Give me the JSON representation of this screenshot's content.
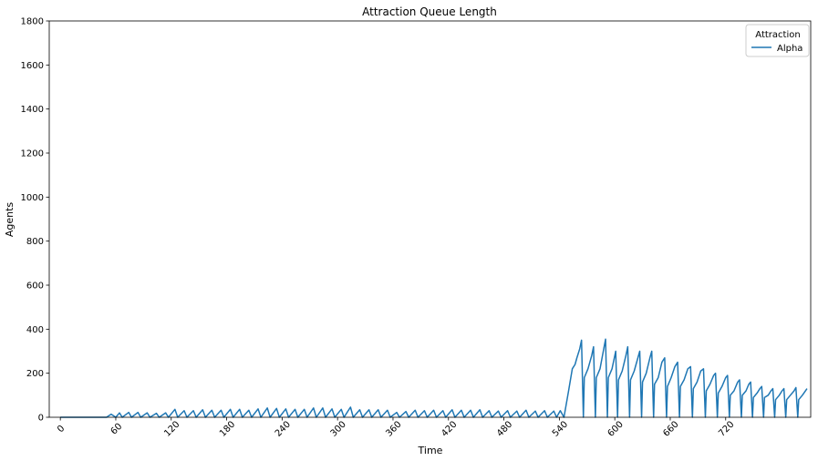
{
  "chart_data": {
    "type": "line",
    "title": "Attraction Queue Length",
    "xlabel": "Time",
    "ylabel": "Agents",
    "xlim": [
      -12,
      812
    ],
    "ylim": [
      0,
      1800
    ],
    "xticks": [
      0,
      60,
      120,
      180,
      240,
      300,
      360,
      420,
      480,
      540,
      600,
      660,
      720
    ],
    "yticks": [
      0,
      200,
      400,
      600,
      800,
      1000,
      1200,
      1400,
      1600,
      1800
    ],
    "legend": {
      "title": "Attraction",
      "position": "top-right"
    },
    "series": [
      {
        "name": "Alpha",
        "color": "#1f77b4",
        "points": [
          [
            0,
            0
          ],
          [
            10,
            0
          ],
          [
            20,
            0
          ],
          [
            30,
            0
          ],
          [
            40,
            0
          ],
          [
            50,
            0
          ],
          [
            55,
            14
          ],
          [
            60,
            0
          ],
          [
            64,
            20
          ],
          [
            67,
            0
          ],
          [
            74,
            22
          ],
          [
            77,
            0
          ],
          [
            84,
            22
          ],
          [
            87,
            0
          ],
          [
            94,
            20
          ],
          [
            97,
            0
          ],
          [
            104,
            18
          ],
          [
            107,
            0
          ],
          [
            114,
            20
          ],
          [
            117,
            0
          ],
          [
            124,
            36
          ],
          [
            127,
            0
          ],
          [
            134,
            30
          ],
          [
            137,
            0
          ],
          [
            144,
            30
          ],
          [
            147,
            0
          ],
          [
            154,
            34
          ],
          [
            157,
            0
          ],
          [
            164,
            32
          ],
          [
            167,
            0
          ],
          [
            174,
            32
          ],
          [
            177,
            0
          ],
          [
            184,
            36
          ],
          [
            187,
            0
          ],
          [
            194,
            36
          ],
          [
            197,
            0
          ],
          [
            204,
            32
          ],
          [
            207,
            0
          ],
          [
            214,
            38
          ],
          [
            217,
            0
          ],
          [
            224,
            42
          ],
          [
            227,
            0
          ],
          [
            234,
            40
          ],
          [
            237,
            0
          ],
          [
            244,
            38
          ],
          [
            247,
            0
          ],
          [
            254,
            36
          ],
          [
            257,
            0
          ],
          [
            264,
            36
          ],
          [
            267,
            0
          ],
          [
            274,
            42
          ],
          [
            277,
            0
          ],
          [
            284,
            42
          ],
          [
            287,
            0
          ],
          [
            294,
            38
          ],
          [
            297,
            0
          ],
          [
            304,
            36
          ],
          [
            307,
            0
          ],
          [
            314,
            46
          ],
          [
            317,
            0
          ],
          [
            324,
            34
          ],
          [
            327,
            0
          ],
          [
            334,
            34
          ],
          [
            337,
            0
          ],
          [
            344,
            34
          ],
          [
            347,
            0
          ],
          [
            354,
            32
          ],
          [
            357,
            0
          ],
          [
            364,
            22
          ],
          [
            367,
            0
          ],
          [
            374,
            26
          ],
          [
            377,
            0
          ],
          [
            384,
            32
          ],
          [
            387,
            0
          ],
          [
            394,
            30
          ],
          [
            397,
            0
          ],
          [
            404,
            32
          ],
          [
            407,
            0
          ],
          [
            414,
            30
          ],
          [
            417,
            0
          ],
          [
            424,
            34
          ],
          [
            427,
            0
          ],
          [
            434,
            32
          ],
          [
            437,
            0
          ],
          [
            444,
            32
          ],
          [
            447,
            0
          ],
          [
            454,
            34
          ],
          [
            457,
            0
          ],
          [
            464,
            30
          ],
          [
            467,
            0
          ],
          [
            474,
            28
          ],
          [
            477,
            0
          ],
          [
            484,
            30
          ],
          [
            487,
            0
          ],
          [
            494,
            28
          ],
          [
            497,
            0
          ],
          [
            504,
            32
          ],
          [
            507,
            0
          ],
          [
            514,
            28
          ],
          [
            517,
            0
          ],
          [
            524,
            30
          ],
          [
            527,
            0
          ],
          [
            534,
            28
          ],
          [
            537,
            0
          ],
          [
            541,
            30
          ],
          [
            545,
            0
          ],
          [
            550,
            120
          ],
          [
            552,
            170
          ],
          [
            554,
            220
          ],
          [
            557,
            240
          ],
          [
            559,
            270
          ],
          [
            562,
            310
          ],
          [
            564,
            350
          ],
          [
            566,
            0
          ],
          [
            567,
            180
          ],
          [
            571,
            220
          ],
          [
            575,
            280
          ],
          [
            577,
            320
          ],
          [
            579,
            0
          ],
          [
            580,
            180
          ],
          [
            584,
            220
          ],
          [
            588,
            310
          ],
          [
            590,
            355
          ],
          [
            592,
            0
          ],
          [
            593,
            180
          ],
          [
            597,
            220
          ],
          [
            601,
            300
          ],
          [
            603,
            0
          ],
          [
            604,
            170
          ],
          [
            608,
            210
          ],
          [
            612,
            280
          ],
          [
            614,
            320
          ],
          [
            616,
            0
          ],
          [
            617,
            170
          ],
          [
            621,
            210
          ],
          [
            625,
            270
          ],
          [
            627,
            300
          ],
          [
            629,
            0
          ],
          [
            630,
            160
          ],
          [
            634,
            200
          ],
          [
            638,
            270
          ],
          [
            640,
            300
          ],
          [
            642,
            0
          ],
          [
            643,
            150
          ],
          [
            647,
            180
          ],
          [
            651,
            250
          ],
          [
            654,
            270
          ],
          [
            656,
            0
          ],
          [
            657,
            140
          ],
          [
            661,
            180
          ],
          [
            665,
            230
          ],
          [
            668,
            250
          ],
          [
            670,
            0
          ],
          [
            671,
            140
          ],
          [
            675,
            170
          ],
          [
            679,
            220
          ],
          [
            682,
            230
          ],
          [
            684,
            0
          ],
          [
            685,
            130
          ],
          [
            689,
            160
          ],
          [
            693,
            210
          ],
          [
            696,
            220
          ],
          [
            698,
            0
          ],
          [
            699,
            120
          ],
          [
            703,
            150
          ],
          [
            707,
            190
          ],
          [
            709,
            200
          ],
          [
            711,
            0
          ],
          [
            712,
            110
          ],
          [
            716,
            140
          ],
          [
            720,
            180
          ],
          [
            722,
            190
          ],
          [
            724,
            0
          ],
          [
            725,
            100
          ],
          [
            729,
            120
          ],
          [
            733,
            160
          ],
          [
            735,
            170
          ],
          [
            737,
            0
          ],
          [
            738,
            100
          ],
          [
            742,
            120
          ],
          [
            745,
            150
          ],
          [
            747,
            160
          ],
          [
            749,
            0
          ],
          [
            750,
            90
          ],
          [
            754,
            110
          ],
          [
            757,
            130
          ],
          [
            759,
            140
          ],
          [
            761,
            0
          ],
          [
            762,
            90
          ],
          [
            766,
            100
          ],
          [
            769,
            120
          ],
          [
            771,
            130
          ],
          [
            773,
            0
          ],
          [
            774,
            80
          ],
          [
            778,
            100
          ],
          [
            781,
            120
          ],
          [
            783,
            130
          ],
          [
            785,
            0
          ],
          [
            786,
            80
          ],
          [
            790,
            100
          ],
          [
            794,
            120
          ],
          [
            796,
            135
          ],
          [
            798,
            0
          ],
          [
            799,
            80
          ],
          [
            803,
            100
          ],
          [
            808,
            130
          ]
        ]
      }
    ]
  }
}
